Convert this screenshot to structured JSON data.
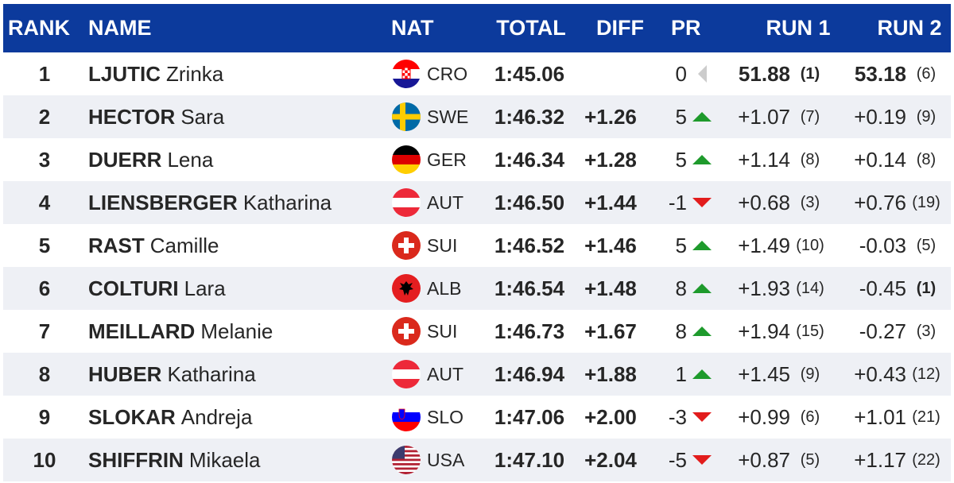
{
  "header": {
    "rank": "RANK",
    "name": "NAME",
    "nat": "NAT",
    "total": "TOTAL",
    "diff": "DIFF",
    "pr": "PR",
    "run1": "RUN 1",
    "run2": "RUN 2"
  },
  "colors": {
    "header_bg": "#0c3a9c",
    "up": "#1e9a2c",
    "down": "#e21c1c",
    "neutral": "#cccccc"
  },
  "rows": [
    {
      "rank": "1",
      "surname": "LJUTIC",
      "first": "Zrinka",
      "flag": "croatia-flag-icon",
      "nat": "CRO",
      "total": "1:45.06",
      "diff": "",
      "pr": "0",
      "pr_dir": "none",
      "run1": "51.88",
      "run1_rank": "(1)",
      "run1_bold": true,
      "run2": "53.18",
      "run2_rank": "(6)",
      "run2_bold": true,
      "run2_rank_bold": false
    },
    {
      "rank": "2",
      "surname": "HECTOR",
      "first": "Sara",
      "flag": "sweden-flag-icon",
      "nat": "SWE",
      "total": "1:46.32",
      "diff": "+1.26",
      "pr": "5",
      "pr_dir": "up",
      "run1": "+1.07",
      "run1_rank": "(7)",
      "run2": "+0.19",
      "run2_rank": "(9)"
    },
    {
      "rank": "3",
      "surname": "DUERR",
      "first": "Lena",
      "flag": "germany-flag-icon",
      "nat": "GER",
      "total": "1:46.34",
      "diff": "+1.28",
      "pr": "5",
      "pr_dir": "up",
      "run1": "+1.14",
      "run1_rank": "(8)",
      "run2": "+0.14",
      "run2_rank": "(8)"
    },
    {
      "rank": "4",
      "surname": "LIENSBERGER",
      "first": "Katharina",
      "flag": "austria-flag-icon",
      "nat": "AUT",
      "total": "1:46.50",
      "diff": "+1.44",
      "pr": "-1",
      "pr_dir": "down",
      "run1": "+0.68",
      "run1_rank": "(3)",
      "run2": "+0.76",
      "run2_rank": "(19)"
    },
    {
      "rank": "5",
      "surname": "RAST",
      "first": "Camille",
      "flag": "switzerland-flag-icon",
      "nat": "SUI",
      "total": "1:46.52",
      "diff": "+1.46",
      "pr": "5",
      "pr_dir": "up",
      "run1": "+1.49",
      "run1_rank": "(10)",
      "run2": "-0.03",
      "run2_rank": "(5)"
    },
    {
      "rank": "6",
      "surname": "COLTURI",
      "first": "Lara",
      "flag": "albania-flag-icon",
      "nat": "ALB",
      "total": "1:46.54",
      "diff": "+1.48",
      "pr": "8",
      "pr_dir": "up",
      "run1": "+1.93",
      "run1_rank": "(14)",
      "run2": "-0.45",
      "run2_rank": "(1)",
      "run2_rank_bold": true
    },
    {
      "rank": "7",
      "surname": "MEILLARD",
      "first": "Melanie",
      "flag": "switzerland-flag-icon",
      "nat": "SUI",
      "total": "1:46.73",
      "diff": "+1.67",
      "pr": "8",
      "pr_dir": "up",
      "run1": "+1.94",
      "run1_rank": "(15)",
      "run2": "-0.27",
      "run2_rank": "(3)"
    },
    {
      "rank": "8",
      "surname": "HUBER",
      "first": "Katharina",
      "flag": "austria-flag-icon",
      "nat": "AUT",
      "total": "1:46.94",
      "diff": "+1.88",
      "pr": "1",
      "pr_dir": "up",
      "run1": "+1.45",
      "run1_rank": "(9)",
      "run2": "+0.43",
      "run2_rank": "(12)"
    },
    {
      "rank": "9",
      "surname": "SLOKAR",
      "first": "Andreja",
      "flag": "slovenia-flag-icon",
      "nat": "SLO",
      "total": "1:47.06",
      "diff": "+2.00",
      "pr": "-3",
      "pr_dir": "down",
      "run1": "+0.99",
      "run1_rank": "(6)",
      "run2": "+1.01",
      "run2_rank": "(21)"
    },
    {
      "rank": "10",
      "surname": "SHIFFRIN",
      "first": "Mikaela",
      "flag": "usa-flag-icon",
      "nat": "USA",
      "total": "1:47.10",
      "diff": "+2.04",
      "pr": "-5",
      "pr_dir": "down",
      "run1": "+0.87",
      "run1_rank": "(5)",
      "run2": "+1.17",
      "run2_rank": "(22)"
    }
  ]
}
